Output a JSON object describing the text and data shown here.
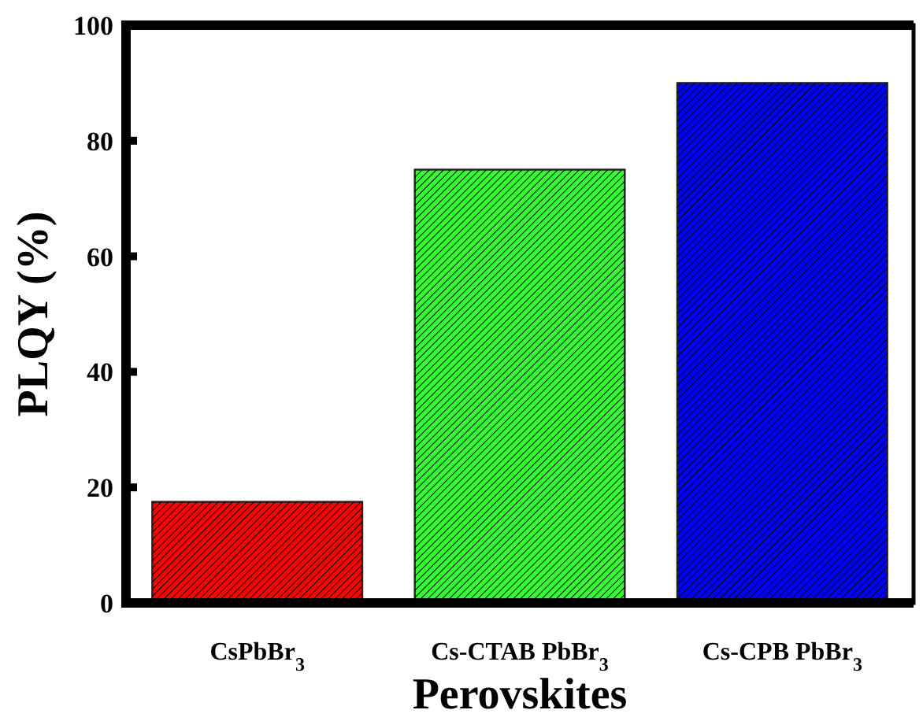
{
  "chart_data": {
    "type": "bar",
    "xlabel": "Perovskites",
    "ylabel": "PLQY (%)",
    "categories": [
      "CsPbBr$_{3}$",
      "Cs-CTAB PbBr$_{3}$",
      "Cs-CPB PbBr$_{3}$"
    ],
    "values": [
      17.5,
      75,
      90
    ],
    "colors": [
      "#ff0000",
      "#33ff33",
      "#0000ff"
    ],
    "ylim": [
      0,
      100
    ],
    "yticks": [
      0,
      20,
      40,
      60,
      80,
      100
    ],
    "grid": false
  }
}
